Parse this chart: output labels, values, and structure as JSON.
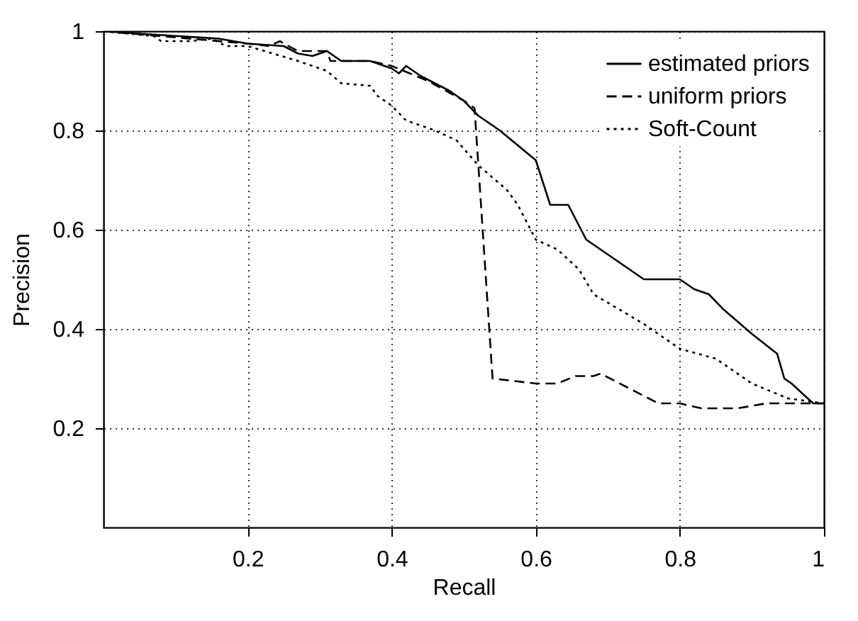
{
  "chart_data": {
    "type": "line",
    "xlabel": "Recall",
    "ylabel": "Precision",
    "xlim": [
      0,
      1
    ],
    "ylim": [
      0,
      1
    ],
    "xticks": [
      0.2,
      0.4,
      0.6,
      0.8,
      1
    ],
    "yticks": [
      0.2,
      0.4,
      0.6,
      0.8,
      1
    ],
    "grid": true,
    "legend": "top right",
    "marker": "none",
    "series": [
      {
        "name": "estimated priors",
        "color": "#000000",
        "line_style": "solid",
        "x": [
          0,
          0.05,
          0.16,
          0.2,
          0.25,
          0.27,
          0.29,
          0.31,
          0.33,
          0.37,
          0.4,
          0.41,
          0.42,
          0.44,
          0.48,
          0.5,
          0.52,
          0.55,
          0.6,
          0.62,
          0.645,
          0.67,
          0.7,
          0.75,
          0.8,
          0.82,
          0.84,
          0.86,
          0.9,
          0.935,
          0.945,
          0.955,
          0.985,
          1
        ],
        "values": [
          1,
          0.995,
          0.985,
          0.975,
          0.97,
          0.955,
          0.95,
          0.96,
          0.94,
          0.94,
          0.925,
          0.915,
          0.93,
          0.91,
          0.88,
          0.86,
          0.83,
          0.8,
          0.74,
          0.65,
          0.65,
          0.58,
          0.55,
          0.5,
          0.5,
          0.48,
          0.47,
          0.44,
          0.39,
          0.35,
          0.3,
          0.29,
          0.25,
          0.25
        ]
      },
      {
        "name": "uniform priors",
        "color": "#000000",
        "line_style": "dashed",
        "x": [
          0,
          0.2,
          0.23,
          0.245,
          0.25,
          0.27,
          0.31,
          0.315,
          0.37,
          0.4,
          0.45,
          0.5,
          0.515,
          0.54,
          0.6,
          0.63,
          0.655,
          0.68,
          0.69,
          0.77,
          0.8,
          0.83,
          0.88,
          0.92,
          1
        ],
        "values": [
          1,
          0.975,
          0.97,
          0.98,
          0.975,
          0.96,
          0.96,
          0.94,
          0.94,
          0.93,
          0.9,
          0.86,
          0.845,
          0.3,
          0.29,
          0.29,
          0.305,
          0.305,
          0.31,
          0.25,
          0.25,
          0.24,
          0.24,
          0.25,
          0.25
        ]
      },
      {
        "name": "Soft-Count",
        "color": "#000000",
        "line_style": "dotted",
        "x": [
          0,
          0.07,
          0.08,
          0.12,
          0.15,
          0.17,
          0.2,
          0.27,
          0.31,
          0.33,
          0.37,
          0.38,
          0.4,
          0.42,
          0.46,
          0.49,
          0.52,
          0.56,
          0.575,
          0.6,
          0.63,
          0.66,
          0.68,
          0.75,
          0.8,
          0.85,
          0.9,
          0.95,
          1
        ],
        "values": [
          1,
          0.99,
          0.98,
          0.98,
          0.985,
          0.97,
          0.97,
          0.94,
          0.92,
          0.895,
          0.89,
          0.87,
          0.85,
          0.82,
          0.8,
          0.78,
          0.73,
          0.68,
          0.65,
          0.58,
          0.56,
          0.52,
          0.47,
          0.41,
          0.36,
          0.34,
          0.29,
          0.26,
          0.25
        ]
      }
    ]
  }
}
